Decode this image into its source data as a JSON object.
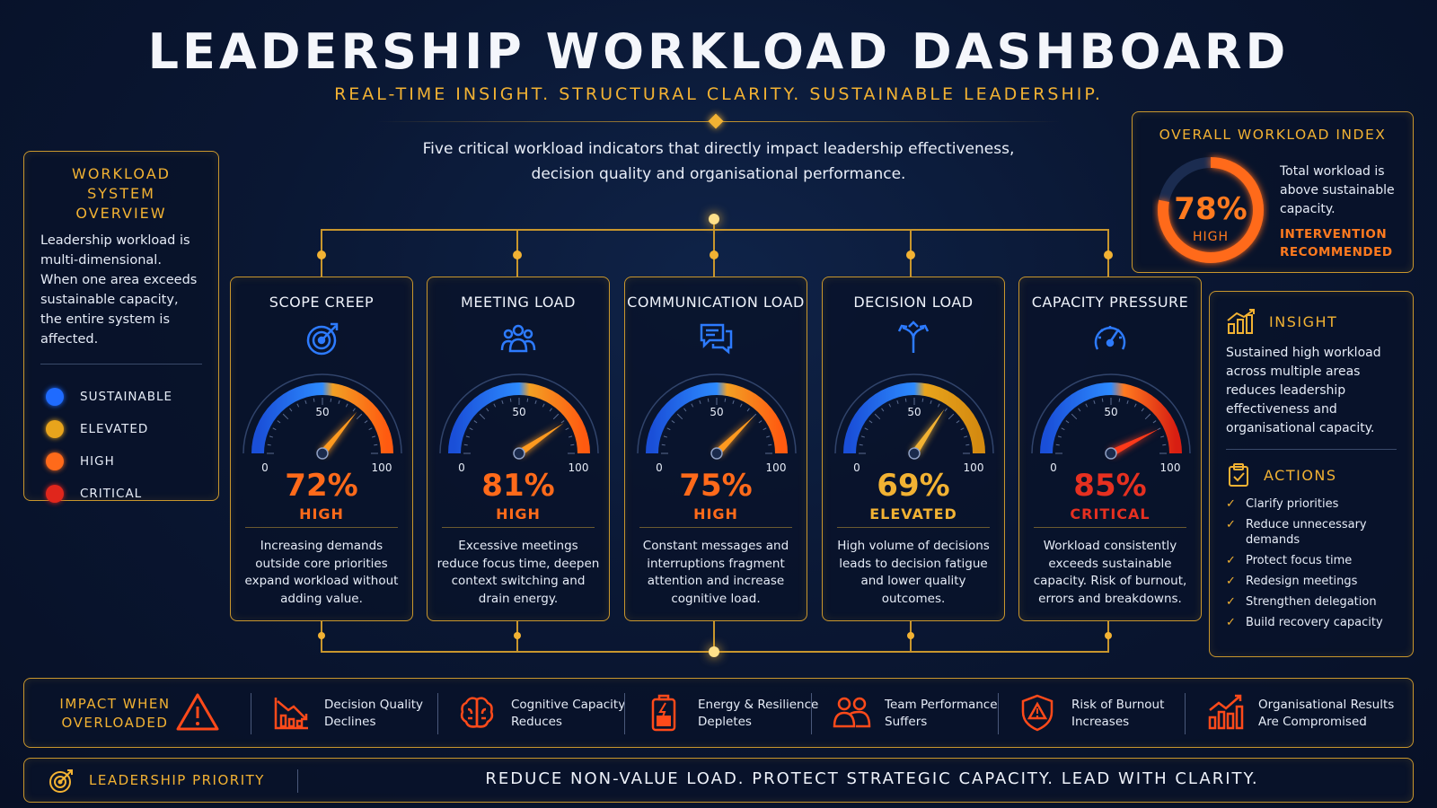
{
  "header": {
    "title": "LEADERSHIP WORKLOAD DASHBOARD",
    "subtitle": "REAL-TIME INSIGHT. STRUCTURAL CLARITY. SUSTAINABLE LEADERSHIP.",
    "intro_line1": "Five critical workload indicators that directly impact leadership effectiveness,",
    "intro_line2": "decision quality and organisational performance."
  },
  "overview": {
    "title_line1": "WORKLOAD",
    "title_line2": "SYSTEM OVERVIEW",
    "text": "Leadership workload is multi-dimensional. When one area exceeds sustainable capacity, the entire system is affected.",
    "legend": [
      {
        "label": "SUSTAINABLE",
        "color": "#1f6bff"
      },
      {
        "label": "ELEVATED",
        "color": "#e8a41c"
      },
      {
        "label": "HIGH",
        "color": "#ff6a1a"
      },
      {
        "label": "CRITICAL",
        "color": "#e0261c"
      }
    ]
  },
  "index": {
    "title": "OVERALL WORKLOAD INDEX",
    "value_label": "78%",
    "value": 78,
    "level": "HIGH",
    "text": "Total workload is above sustainable capacity.",
    "rec_line1": "INTERVENTION",
    "rec_line2": "RECOMMENDED"
  },
  "cards": [
    {
      "title": "SCOPE CREEP",
      "icon": "target-icon",
      "value": 72,
      "value_label": "72%",
      "level": "HIGH",
      "color": "#ff6a1a",
      "desc": "Increasing demands outside core priorities expand workload without adding value."
    },
    {
      "title": "MEETING LOAD",
      "icon": "people-icon",
      "value": 81,
      "value_label": "81%",
      "level": "HIGH",
      "color": "#ff6a1a",
      "desc": "Excessive meetings reduce focus time, deepen context switching and drain energy."
    },
    {
      "title": "COMMUNICATION LOAD",
      "icon": "chat-icon",
      "value": 75,
      "value_label": "75%",
      "level": "HIGH",
      "color": "#ff6a1a",
      "desc": "Constant messages and interruptions fragment attention and increase cognitive load."
    },
    {
      "title": "DECISION LOAD",
      "icon": "split-arrows-icon",
      "value": 69,
      "value_label": "69%",
      "level": "ELEVATED",
      "color": "#f2b233",
      "desc": "High volume of decisions leads to decision fatigue and lower quality outcomes."
    },
    {
      "title": "CAPACITY PRESSURE",
      "icon": "speedometer-icon",
      "value": 85,
      "value_label": "85%",
      "level": "CRITICAL",
      "color": "#e63020",
      "desc": "Workload consistently exceeds sustainable capacity. Risk of burnout, errors and breakdowns."
    }
  ],
  "gauge_ticks": {
    "min": "0",
    "mid": "50",
    "max": "100"
  },
  "insight": {
    "title": "INSIGHT",
    "text": "Sustained high workload across multiple areas reduces leadership effectiveness and organisational capacity.",
    "actions_title": "ACTIONS",
    "actions": [
      "Clarify priorities",
      "Reduce unnecessary demands",
      "Protect focus time",
      "Redesign meetings",
      "Strengthen delegation",
      "Build recovery capacity"
    ]
  },
  "impact": {
    "title_line1": "IMPACT WHEN",
    "title_line2": "OVERLOADED",
    "items": [
      {
        "line1": "Decision Quality",
        "line2": "Declines",
        "icon": "declining-chart-icon"
      },
      {
        "line1": "Cognitive Capacity",
        "line2": "Reduces",
        "icon": "brain-icon"
      },
      {
        "line1": "Energy & Resilience",
        "line2": "Depletes",
        "icon": "battery-icon"
      },
      {
        "line1": "Team Performance",
        "line2": "Suffers",
        "icon": "team-icon"
      },
      {
        "line1": "Risk of Burnout",
        "line2": "Increases",
        "icon": "warning-shield-icon"
      },
      {
        "line1": "Organisational Results",
        "line2": "Are Compromised",
        "icon": "growth-chart-icon"
      }
    ]
  },
  "priority": {
    "title": "LEADERSHIP PRIORITY",
    "message": "REDUCE NON-VALUE LOAD. PROTECT STRATEGIC CAPACITY. LEAD WITH CLARITY."
  }
}
